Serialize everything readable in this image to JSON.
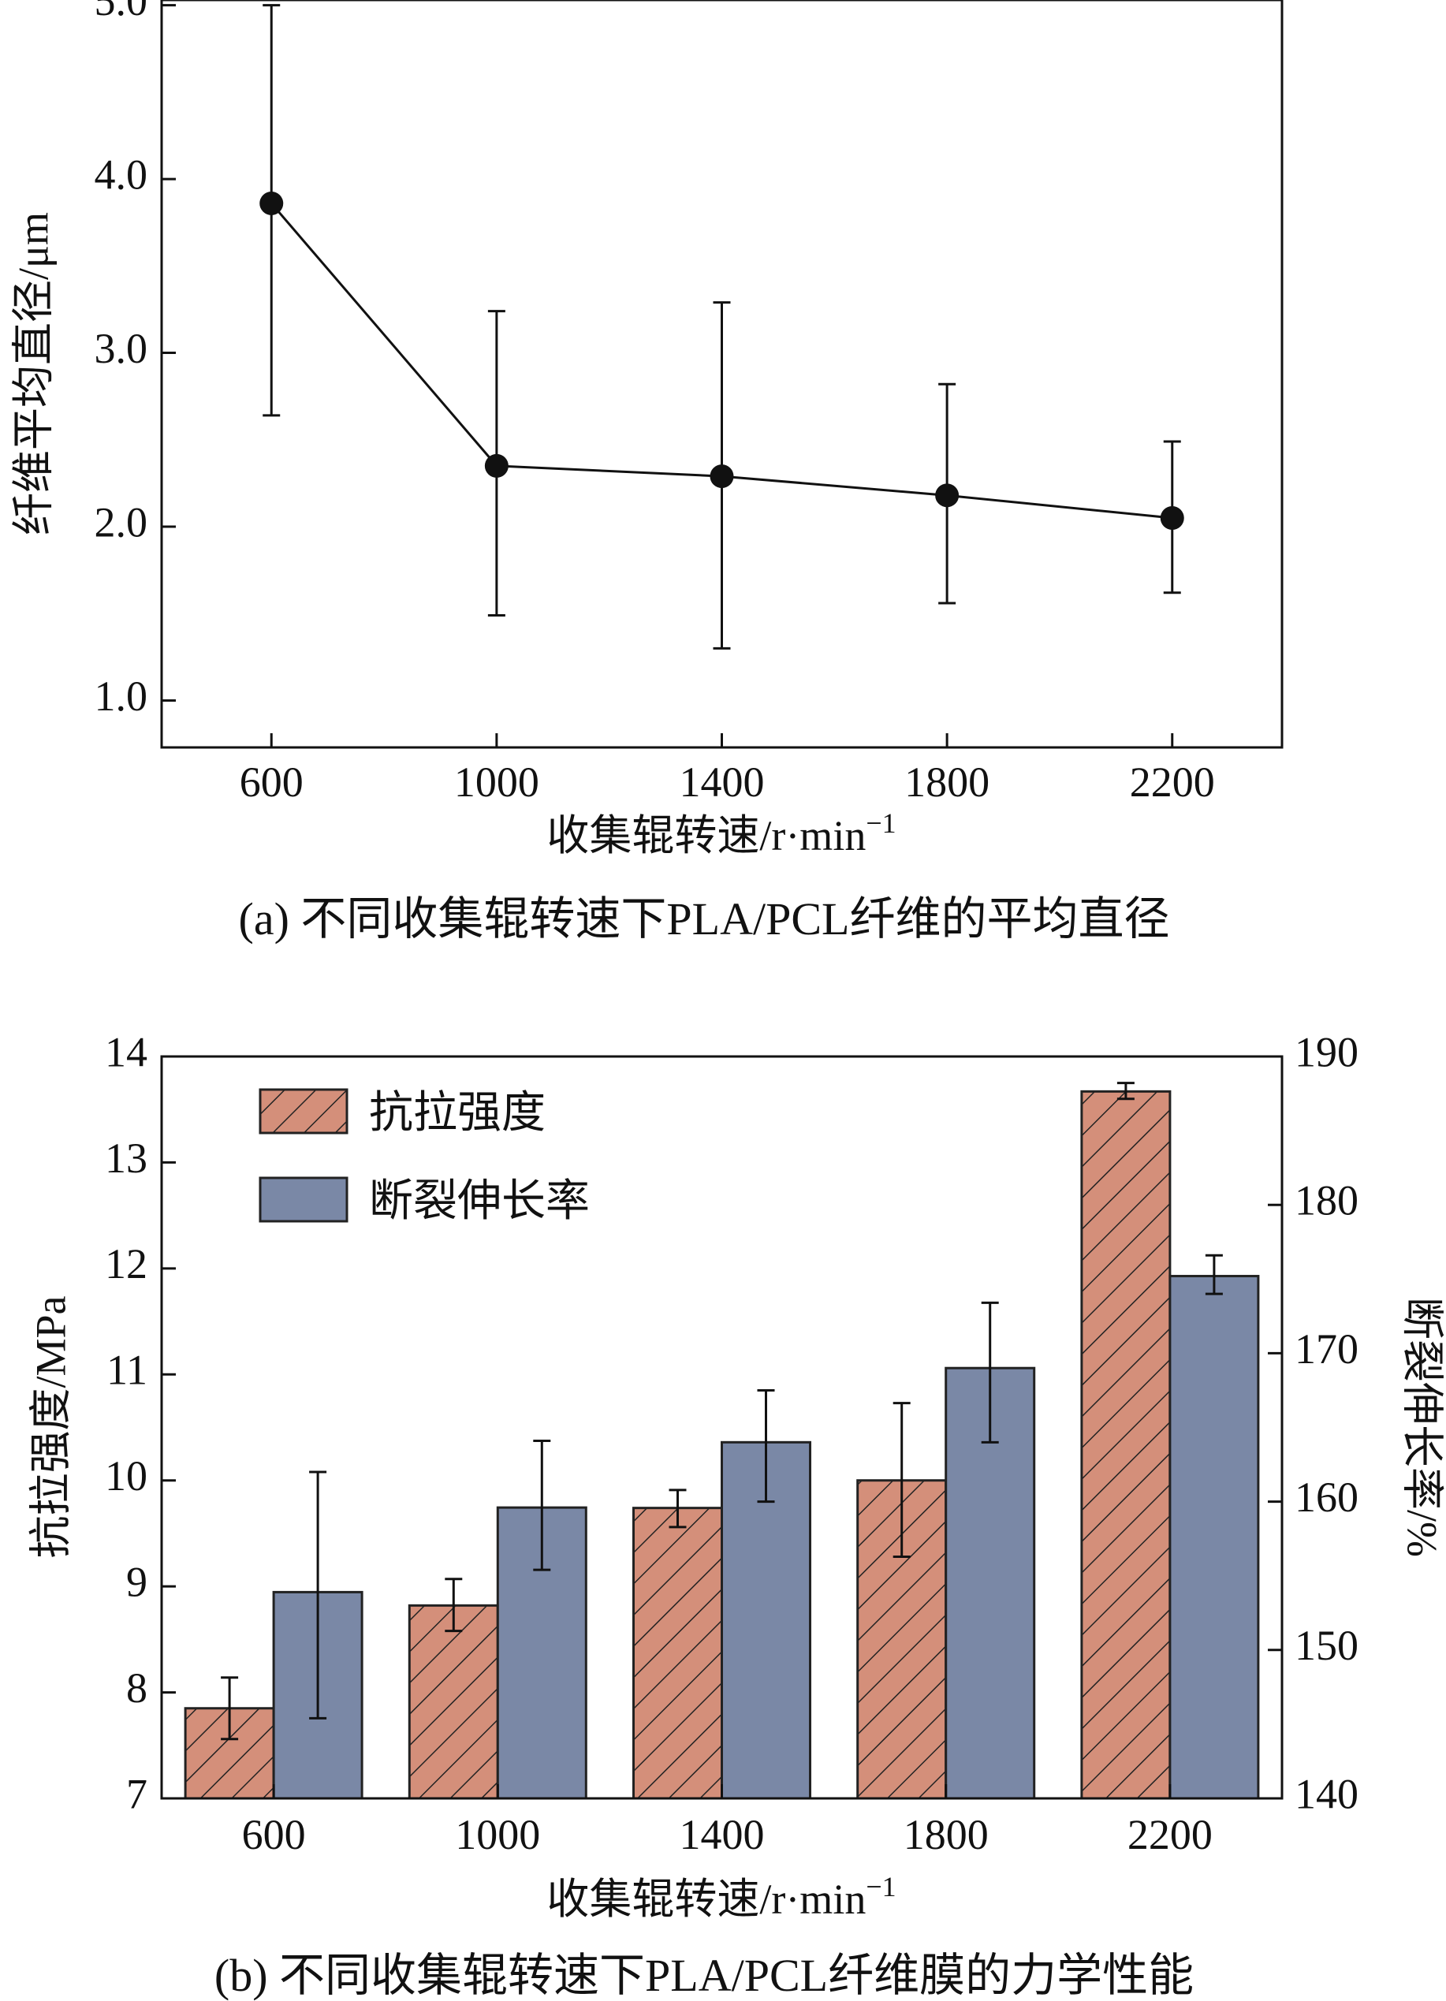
{
  "chart_data": [
    {
      "type": "line",
      "caption": "(a) 不同收集辊转速下PLA/PCL纤维的平均直径",
      "xlabel": "收集辊转速/r·min",
      "xlabel_sup": "−1",
      "ylabel": "纤维平均直径/μm",
      "x": [
        600,
        1000,
        1400,
        1800,
        2200
      ],
      "x_tick_labels": [
        "600",
        "1000",
        "1400",
        "1800",
        "2200"
      ],
      "xlim": [
        405,
        2395
      ],
      "ylim": [
        0.73,
        5.03
      ],
      "y_ticks": [
        1.0,
        2.0,
        3.0,
        4.0,
        5.0
      ],
      "y_tick_labels": [
        "1.0",
        "2.0",
        "3.0",
        "4.0",
        "5.0"
      ],
      "series": [
        {
          "name": "平均直径",
          "values": [
            3.86,
            2.35,
            2.29,
            2.18,
            2.05
          ],
          "err_low": [
            2.64,
            1.49,
            1.3,
            1.56,
            1.62
          ],
          "err_high": [
            5.0,
            3.24,
            3.29,
            2.82,
            2.49
          ]
        }
      ]
    },
    {
      "type": "bar",
      "caption": "(b) 不同收集辊转速下PLA/PCL纤维膜的力学性能",
      "xlabel": "收集辊转速/r·min",
      "xlabel_sup": "−1",
      "ylabel_left": "抗拉强度/MPa",
      "ylabel_right": "断裂伸长率/%",
      "categories": [
        "600",
        "1000",
        "1400",
        "1800",
        "2200"
      ],
      "ylim_left": [
        7,
        14
      ],
      "ylim_right": [
        140,
        190
      ],
      "y_ticks_left": [
        "7",
        "8",
        "9",
        "10",
        "11",
        "12",
        "13",
        "14"
      ],
      "y_ticks_right": [
        "140",
        "150",
        "160",
        "170",
        "180",
        "190"
      ],
      "series": [
        {
          "name": "抗拉强度",
          "axis": "left",
          "color": "#d48f7a",
          "pattern": "hatch",
          "values": [
            7.85,
            8.82,
            9.74,
            10.0,
            13.67
          ],
          "err_low": [
            7.56,
            8.58,
            9.56,
            9.28,
            13.6
          ],
          "err_high": [
            8.14,
            9.07,
            9.91,
            10.73,
            13.75
          ]
        },
        {
          "name": "断裂伸长率",
          "axis": "right",
          "color": "#7a88a6",
          "pattern": "solid",
          "values": [
            153.9,
            159.6,
            164.0,
            169.0,
            175.2
          ],
          "err_low": [
            145.4,
            155.4,
            160.0,
            164.0,
            174.0
          ],
          "err_high": [
            162.0,
            164.1,
            167.5,
            173.4,
            176.6
          ]
        }
      ],
      "legend": [
        "抗拉强度",
        "断裂伸长率"
      ],
      "legend_position": "top-left"
    }
  ]
}
